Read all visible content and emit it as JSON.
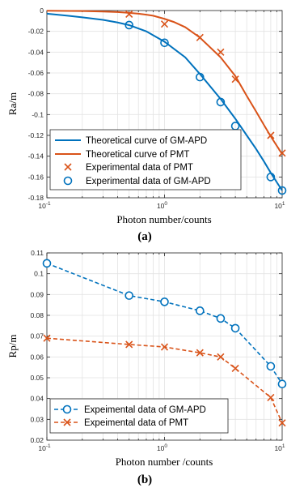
{
  "colors": {
    "blue": "#0072BD",
    "orange": "#D95319"
  },
  "chart_data": [
    {
      "type": "line",
      "caption": "(a)",
      "xlabel": "Photon number/counts",
      "ylabel": "Ra/m",
      "xscale": "log",
      "xlim": [
        0.1,
        10
      ],
      "ylim": [
        -0.18,
        0
      ],
      "grid": true,
      "legend_position": "bottom-left",
      "xticks": [
        {
          "value": 0.1,
          "base": "10",
          "exp": "-1"
        },
        {
          "value": 1,
          "base": "10",
          "exp": "0"
        },
        {
          "value": 10,
          "base": "10",
          "exp": "1"
        }
      ],
      "yticks": [
        {
          "value": 0,
          "label": "0"
        },
        {
          "value": -0.02,
          "label": "-0.02"
        },
        {
          "value": -0.04,
          "label": "-0.04"
        },
        {
          "value": -0.06,
          "label": "-0.06"
        },
        {
          "value": -0.08,
          "label": "-0.08"
        },
        {
          "value": -0.1,
          "label": "-0.1"
        },
        {
          "value": -0.12,
          "label": "-0.12"
        },
        {
          "value": -0.14,
          "label": "-0.14"
        },
        {
          "value": -0.16,
          "label": "-0.16"
        },
        {
          "value": -0.18,
          "label": "-0.18"
        }
      ],
      "series": [
        {
          "name": "Theoretical curve of GM-APD",
          "style": "line",
          "color": "blue",
          "x": [
            0.1,
            0.15,
            0.2,
            0.3,
            0.4,
            0.5,
            0.7,
            1,
            1.5,
            2,
            3,
            4,
            5,
            6,
            7,
            8,
            9,
            10
          ],
          "y": [
            -0.003,
            -0.005,
            -0.0065,
            -0.009,
            -0.0115,
            -0.014,
            -0.02,
            -0.03,
            -0.045,
            -0.061,
            -0.085,
            -0.104,
            -0.12,
            -0.133,
            -0.145,
            -0.156,
            -0.165,
            -0.173
          ]
        },
        {
          "name": "Theoretical curve of PMT",
          "style": "line",
          "color": "orange",
          "x": [
            0.1,
            0.2,
            0.3,
            0.4,
            0.5,
            0.6,
            0.7,
            0.8,
            1,
            1.2,
            1.5,
            2,
            3,
            4,
            5,
            6,
            7,
            8,
            9,
            10
          ],
          "y": [
            -0.0002,
            -0.0005,
            -0.001,
            -0.0015,
            -0.0022,
            -0.003,
            -0.004,
            -0.005,
            -0.008,
            -0.011,
            -0.016,
            -0.026,
            -0.045,
            -0.063,
            -0.082,
            -0.097,
            -0.11,
            -0.121,
            -0.13,
            -0.138
          ]
        },
        {
          "name": "Experimental data of PMT",
          "style": "x-marker",
          "color": "orange",
          "x": [
            0.5,
            1,
            2,
            3,
            4,
            8,
            10
          ],
          "y": [
            -0.0035,
            -0.013,
            -0.026,
            -0.04,
            -0.066,
            -0.12,
            -0.137
          ]
        },
        {
          "name": "Experimental data of GM-APD",
          "style": "o-marker",
          "color": "blue",
          "x": [
            0.5,
            1,
            2,
            3,
            4,
            8,
            10
          ],
          "y": [
            -0.014,
            -0.031,
            -0.064,
            -0.088,
            -0.111,
            -0.16,
            -0.173
          ]
        }
      ]
    },
    {
      "type": "line",
      "caption": "(b)",
      "xlabel": "Photon number /counts",
      "ylabel": "Rp/m",
      "xscale": "log",
      "xlim": [
        0.1,
        10
      ],
      "ylim": [
        0.02,
        0.11
      ],
      "grid": true,
      "legend_position": "bottom-left",
      "xticks": [
        {
          "value": 0.1,
          "base": "10",
          "exp": "-1"
        },
        {
          "value": 1,
          "base": "10",
          "exp": "0"
        },
        {
          "value": 10,
          "base": "10",
          "exp": "1"
        }
      ],
      "yticks": [
        {
          "value": 0.02,
          "label": "0.02"
        },
        {
          "value": 0.03,
          "label": "0.03"
        },
        {
          "value": 0.04,
          "label": "0.04"
        },
        {
          "value": 0.05,
          "label": "0.05"
        },
        {
          "value": 0.06,
          "label": "0.06"
        },
        {
          "value": 0.07,
          "label": "0.07"
        },
        {
          "value": 0.08,
          "label": "0.08"
        },
        {
          "value": 0.09,
          "label": "0.09"
        },
        {
          "value": 0.1,
          "label": "0.1"
        },
        {
          "value": 0.11,
          "label": "0.11"
        }
      ],
      "series": [
        {
          "name": "Expeimental data of GM-APD",
          "style": "dashed-o",
          "color": "blue",
          "x": [
            0.1,
            0.5,
            1,
            2,
            3,
            4,
            8,
            10
          ],
          "y": [
            0.105,
            0.0895,
            0.0865,
            0.0822,
            0.0785,
            0.0738,
            0.0555,
            0.047
          ]
        },
        {
          "name": "Expeimental data of PMT",
          "style": "dashed-x",
          "color": "orange",
          "x": [
            0.1,
            0.5,
            1,
            2,
            3,
            4,
            8,
            10
          ],
          "y": [
            0.069,
            0.066,
            0.0648,
            0.062,
            0.06,
            0.0545,
            0.0405,
            0.0283
          ]
        }
      ]
    }
  ]
}
